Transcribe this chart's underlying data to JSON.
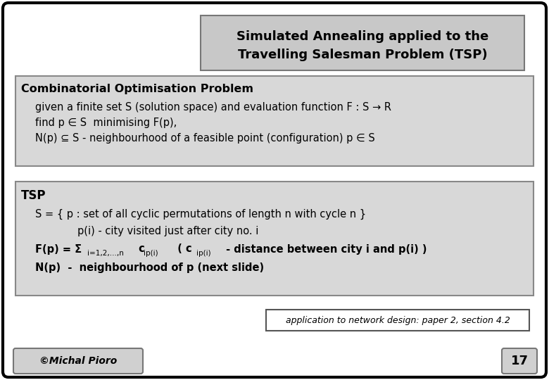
{
  "title_line1": "Simulated Annealing applied to the",
  "title_line2": "Travelling Salesman Problem (TSP)",
  "bg_color": "#ffffff",
  "title_box_color": "#c8c8c8",
  "section_box_color": "#d0d0d0",
  "footer_text": "application to network design: paper 2, section 4.2",
  "copyright_text": "©Michal Pioro",
  "page_num": "17",
  "comb_title": "Combinatorial Optimisation Problem",
  "comb_line1": "given a finite set S (solution space) and evaluation function F : S → R",
  "comb_line2": "find p ∈ S  minimising F(p),",
  "comb_line3": "N(p) ⊆ S - neighbourhood of a feasible point (configuration) p ∈ S",
  "tsp_title": "TSP",
  "tsp_line1": "S = { p : set of all cyclic permutations of length n with cycle n }",
  "tsp_line2": "p(i) - city visited just after city no. i",
  "tsp_line4": "N(p)  -  neighbourhood of p (next slide)"
}
